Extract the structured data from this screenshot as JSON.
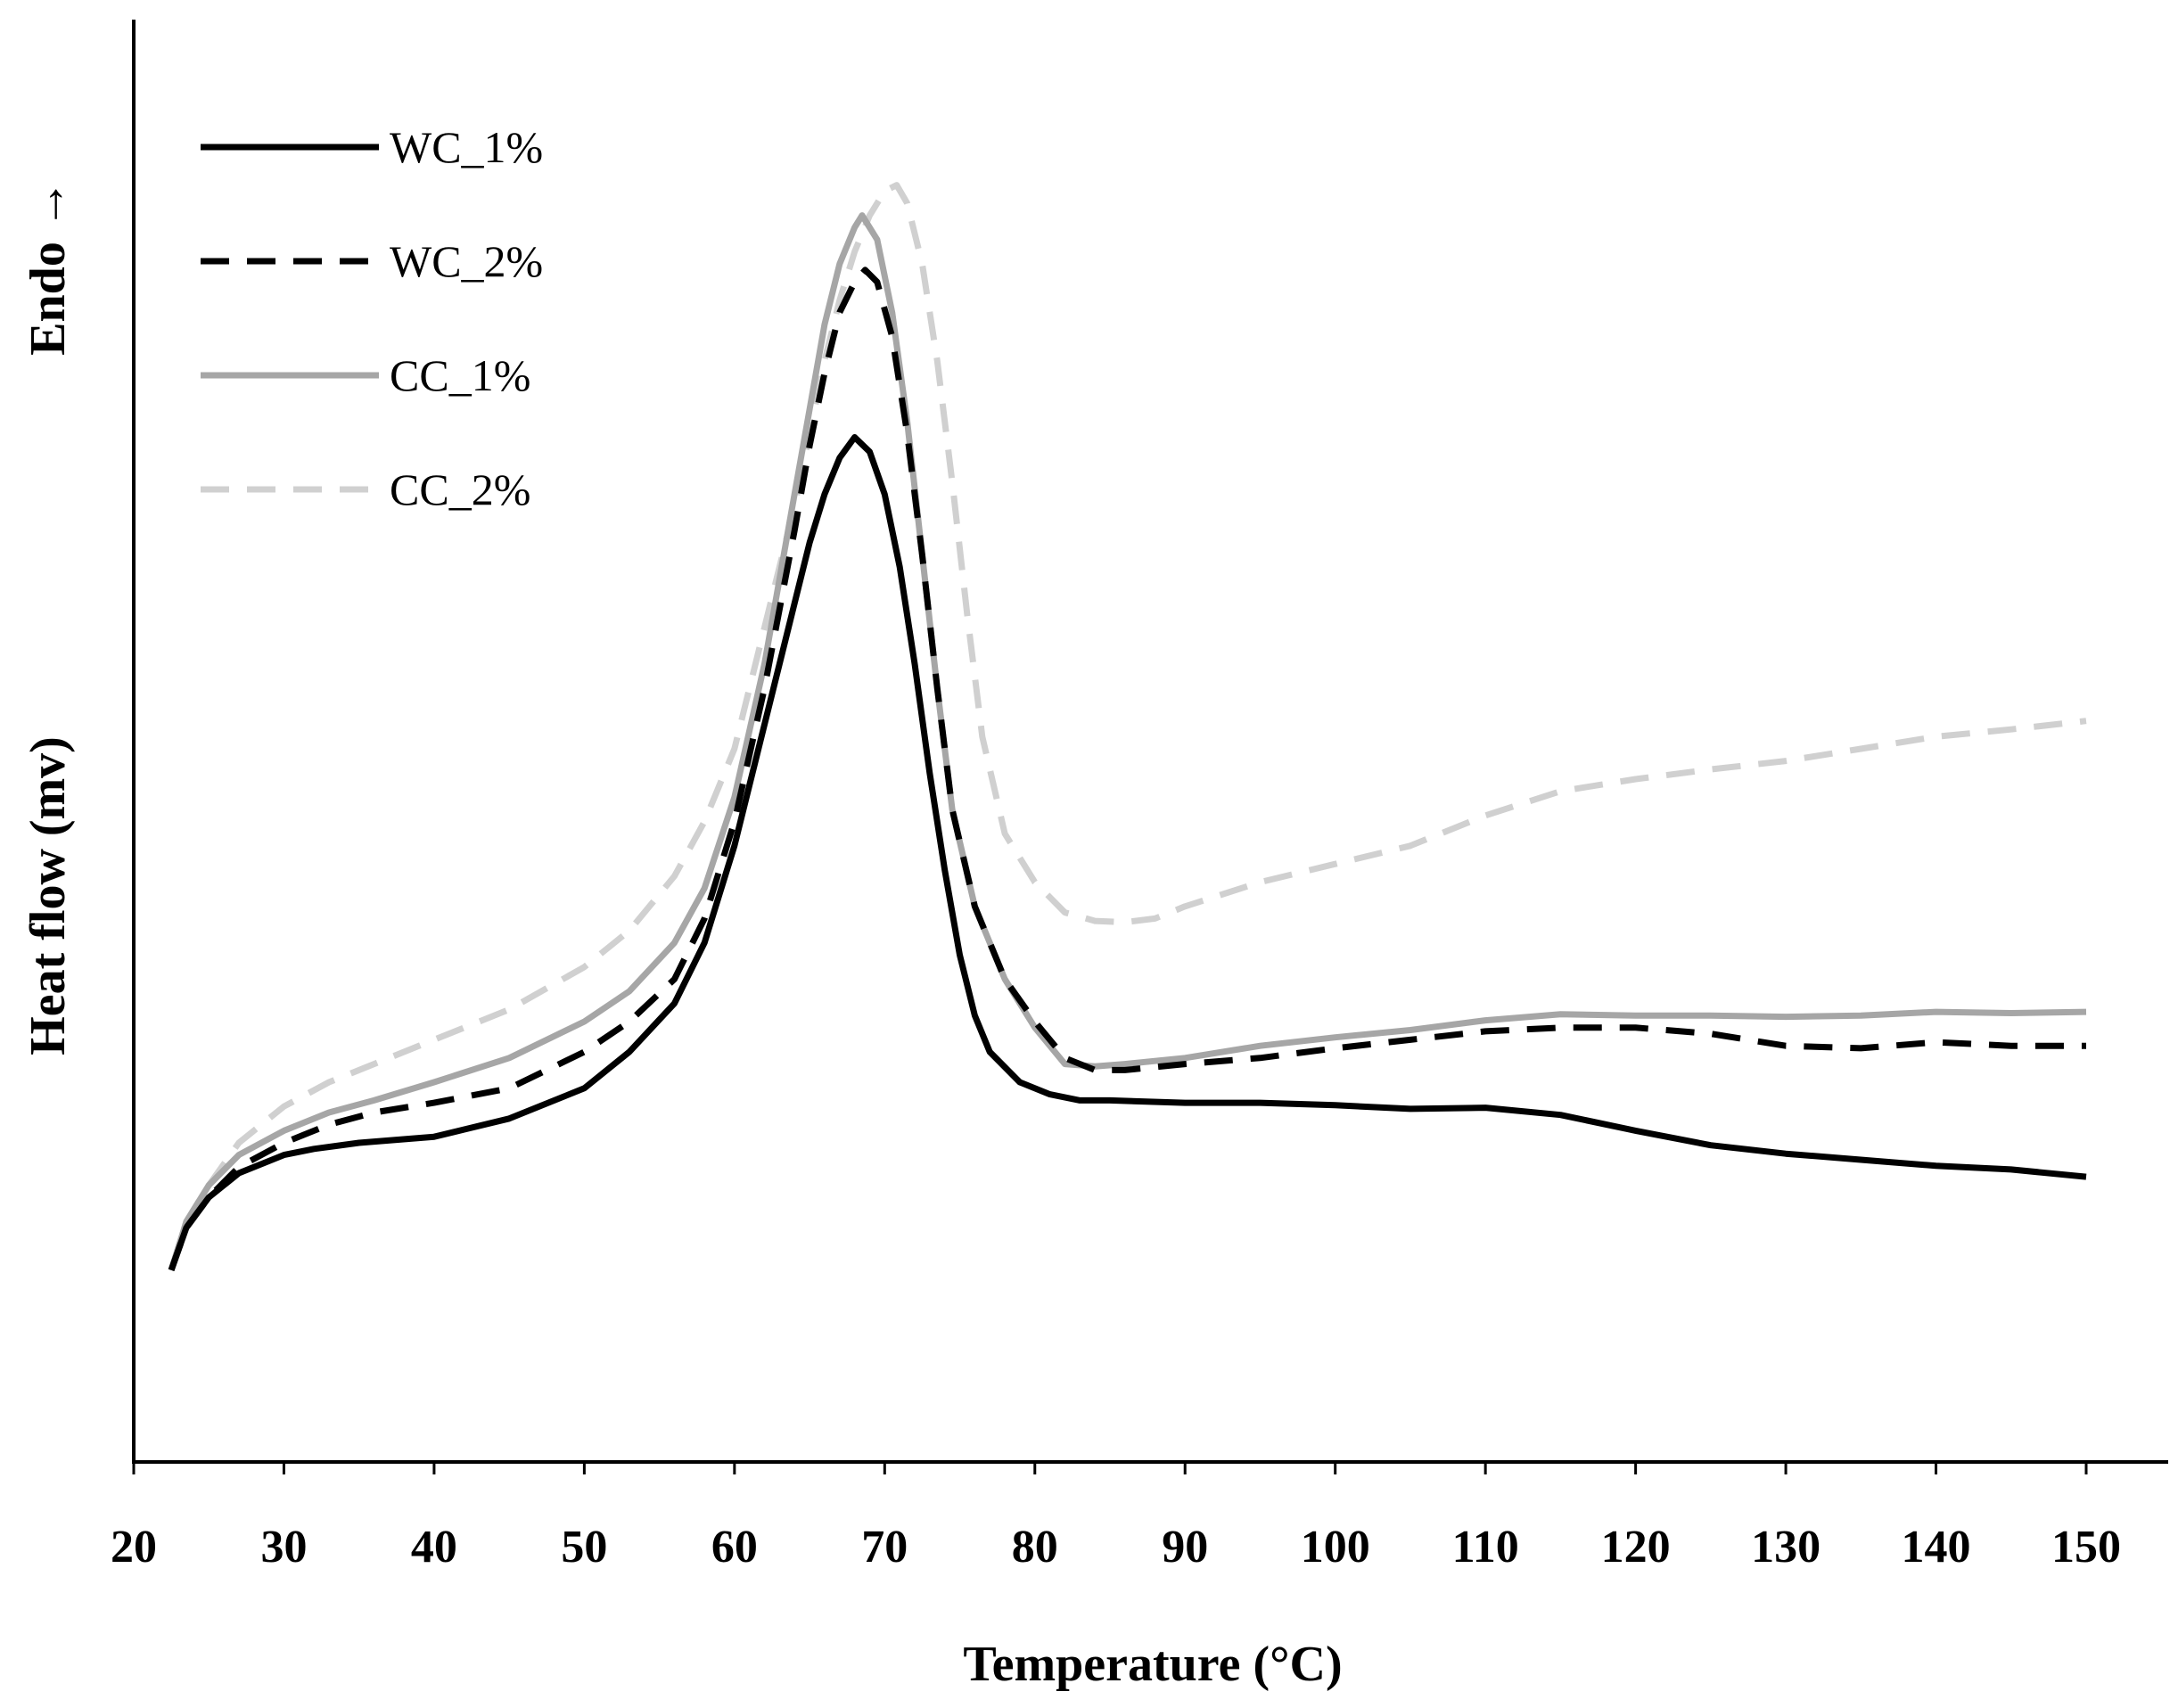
{
  "chart_data": {
    "type": "line",
    "xlabel": "Temperature (°C)",
    "ylabel": "Heat flow (mv)",
    "ylabel_direction": "Endo →",
    "xlim": [
      20,
      150
    ],
    "ylim": [
      0,
      100
    ],
    "xticks": [
      20,
      30,
      40,
      50,
      60,
      70,
      80,
      90,
      100,
      110,
      120,
      130,
      140,
      150
    ],
    "y_tick_labels": "none",
    "grid": false,
    "legend_position": "top-left",
    "series": [
      {
        "name": "WC_1%",
        "color": "#000000",
        "dash": "solid",
        "x": [
          22.5,
          23.5,
          25,
          27,
          30,
          32,
          35,
          40,
          45,
          50,
          53,
          56,
          58,
          60,
          62,
          64,
          65,
          66,
          67,
          68,
          69,
          70,
          71,
          72,
          73,
          74,
          75,
          76,
          77,
          79,
          81,
          83,
          85,
          90,
          95,
          100,
          105,
          110,
          115,
          120,
          125,
          130,
          135,
          140,
          145,
          150
        ],
        "y": [
          7,
          10.5,
          13,
          15,
          16.5,
          17,
          17.5,
          18,
          19.5,
          22,
          25,
          29,
          34,
          42,
          52,
          62,
          67,
          71,
          74,
          75.7,
          74.5,
          71,
          65,
          57,
          48,
          40,
          33,
          28,
          25,
          22.5,
          21.5,
          21,
          21,
          20.8,
          20.8,
          20.6,
          20.3,
          20.4,
          19.8,
          18.5,
          17.3,
          16.6,
          16.1,
          15.6,
          15.3,
          14.7
        ]
      },
      {
        "name": "WC_2%",
        "color": "#000000",
        "dash": "dashed",
        "x": [
          22.5,
          23.5,
          25,
          27,
          30,
          33,
          36,
          40,
          45,
          50,
          53,
          56,
          58,
          60,
          62,
          64,
          65,
          66,
          67,
          68,
          68.7,
          69.5,
          70.5,
          71.5,
          72.5,
          73.5,
          74.5,
          76,
          78,
          80,
          82,
          84,
          86,
          90,
          95,
          100,
          105,
          110,
          115,
          120,
          125,
          130,
          135,
          140,
          145,
          150
        ],
        "y": [
          7,
          10.5,
          13,
          15.5,
          17.5,
          19,
          20,
          20.8,
          22,
          25,
          27.5,
          31,
          36,
          44,
          55,
          68,
          75,
          81,
          86,
          88.5,
          89.5,
          88.5,
          84,
          76,
          66,
          55,
          45,
          37,
          31,
          27.5,
          24.5,
          23.5,
          23.5,
          24,
          24.5,
          25.3,
          26,
          26.7,
          27,
          27,
          26.5,
          25.5,
          25.3,
          25.8,
          25.5,
          25.5
        ]
      },
      {
        "name": "CC_1%",
        "color": "#a6a6a6",
        "dash": "solid",
        "x": [
          22.5,
          23.5,
          25,
          27,
          30,
          33,
          36,
          40,
          45,
          50,
          53,
          56,
          58,
          60,
          62,
          64,
          65,
          66,
          67,
          68,
          68.5,
          69.5,
          70.5,
          71.5,
          72.5,
          73.5,
          74.5,
          76,
          78,
          80,
          82,
          84,
          86,
          90,
          95,
          100,
          105,
          110,
          115,
          120,
          125,
          130,
          135,
          140,
          145,
          150
        ],
        "y": [
          7,
          11,
          14,
          16.5,
          18.5,
          20,
          21,
          22.5,
          24.5,
          27.5,
          30,
          34,
          38.5,
          46,
          57,
          71,
          78,
          85,
          90,
          93,
          94,
          92,
          86,
          77,
          66,
          55,
          45,
          37,
          31,
          27,
          24,
          23.8,
          24,
          24.5,
          25.5,
          26.2,
          26.8,
          27.6,
          28.1,
          28,
          28,
          27.9,
          28,
          28.3,
          28.2,
          28.3
        ]
      },
      {
        "name": "CC_2%",
        "color": "#d0d0d0",
        "dash": "dashed",
        "x": [
          22.5,
          23.5,
          25,
          27,
          30,
          33,
          36,
          40,
          45,
          50,
          53,
          56,
          58,
          60,
          62,
          64,
          65,
          66,
          67,
          68,
          69,
          70,
          70.8,
          71.5,
          72.5,
          73.5,
          74.5,
          75.5,
          76.5,
          78,
          80,
          82,
          84,
          86,
          88,
          90,
          95,
          100,
          105,
          110,
          115,
          120,
          125,
          130,
          135,
          140,
          145,
          150
        ],
        "y": [
          7,
          11,
          14,
          17.5,
          20.5,
          22.5,
          24,
          26,
          28.5,
          32,
          35,
          39.5,
          44,
          50,
          60,
          70,
          76,
          82,
          87,
          91,
          94,
          96,
          96.5,
          95,
          90,
          82,
          72,
          61,
          51,
          43,
          39,
          36.5,
          35.8,
          35.7,
          36,
          37,
          39,
          40.5,
          42,
          44.5,
          46.5,
          47.5,
          48.3,
          49,
          50,
          51,
          51.6,
          52.3
        ]
      }
    ]
  }
}
